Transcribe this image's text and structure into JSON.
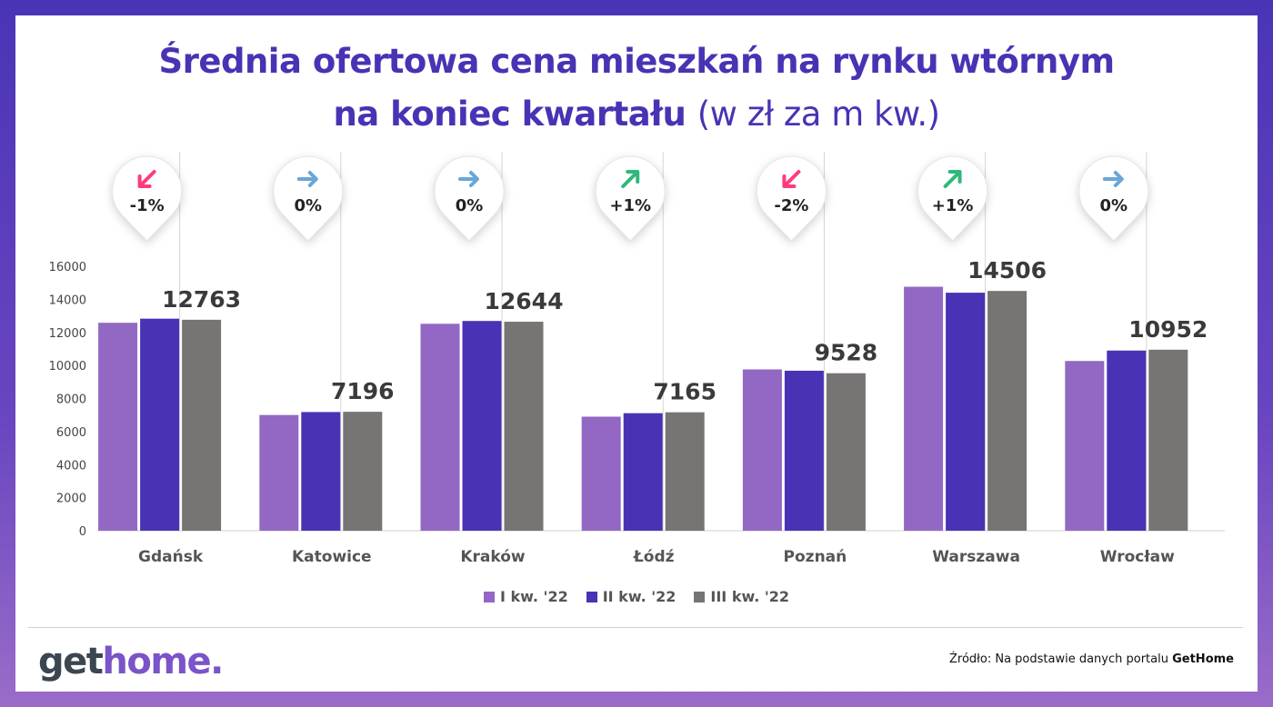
{
  "title": {
    "line1": "Średnia ofertowa cena mieszkań na rynku wtórnym",
    "line2_bold": "na koniec kwartału",
    "line2_light": "(w zł za m kw.)"
  },
  "colors": {
    "series1": "#9268c4",
    "series2": "#4a32b4",
    "series3": "#777474",
    "down": "#ff3b7f",
    "flat": "#6aa6d8",
    "up": "#2fb87a"
  },
  "chart_data": {
    "type": "bar",
    "categories": [
      "Gdańsk",
      "Katowice",
      "Kraków",
      "Łódź",
      "Poznań",
      "Warszawa",
      "Wrocław"
    ],
    "series": [
      {
        "name": "I kw. '22",
        "values": [
          12580,
          7000,
          12520,
          6900,
          9760,
          14760,
          10270
        ]
      },
      {
        "name": "II kw. '22",
        "values": [
          12830,
          7180,
          12690,
          7110,
          9680,
          14400,
          10900
        ]
      },
      {
        "name": "III kw. '22",
        "values": [
          12763,
          7196,
          12644,
          7165,
          9528,
          14506,
          10952
        ]
      }
    ],
    "data_labels": [
      "12763",
      "7196",
      "12644",
      "7165",
      "9528",
      "14506",
      "10952"
    ],
    "changes": [
      {
        "text": "-1%",
        "direction": "down"
      },
      {
        "text": "0%",
        "direction": "flat"
      },
      {
        "text": "0%",
        "direction": "flat"
      },
      {
        "text": "+1%",
        "direction": "up"
      },
      {
        "text": "-2%",
        "direction": "down"
      },
      {
        "text": "+1%",
        "direction": "up"
      },
      {
        "text": "0%",
        "direction": "flat"
      }
    ],
    "yticks": [
      0,
      2000,
      4000,
      6000,
      8000,
      10000,
      12000,
      14000,
      16000
    ],
    "ylim": [
      0,
      16000
    ],
    "grid": false,
    "legend_position": "bottom-center"
  },
  "footer": {
    "logo_part1": "get",
    "logo_part2": "home.",
    "source_prefix": "Źródło: Na podstawie danych portalu ",
    "source_brand": "GetHome"
  }
}
